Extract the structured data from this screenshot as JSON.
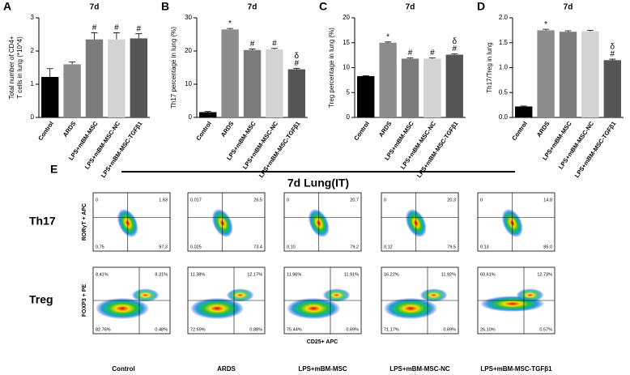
{
  "chart_data": [
    {
      "type": "bar",
      "panel_label": "A",
      "title": "7d",
      "ylabel": [
        "Total number of CD4+",
        "T cells in lung (*10^4)"
      ],
      "categories": [
        "Control",
        "ARDS",
        "LPS+mBM-MSC",
        "LPS+mBM-MSC-NC",
        "LPS+mBM-MSC-TGFβ1"
      ],
      "values": [
        1.22,
        1.6,
        2.35,
        2.35,
        2.38
      ],
      "errors": [
        0.25,
        0.07,
        0.2,
        0.2,
        0.14
      ],
      "colors": [
        "#000000",
        "#8c8c8c",
        "#7b7b7b",
        "#d3d3d3",
        "#555555"
      ],
      "annotations": [
        [],
        [],
        [
          "#"
        ],
        [
          "#"
        ],
        [
          "#"
        ]
      ],
      "ylim": [
        0,
        3
      ],
      "yticks": [
        0,
        1,
        2,
        3
      ]
    },
    {
      "type": "bar",
      "panel_label": "B",
      "title": "7d",
      "ylabel": [
        "Th17 percentage in lung (%)"
      ],
      "categories": [
        "Control",
        "ARDS",
        "LPS+mBM-MSC",
        "LPS+mBM-MSC-NC",
        "LPS+mBM-MSC-TGFβ1"
      ],
      "values": [
        1.6,
        26.5,
        20.3,
        20.5,
        14.5
      ],
      "errors": [
        0.2,
        0.3,
        0.3,
        0.3,
        0.3
      ],
      "colors": [
        "#000000",
        "#8c8c8c",
        "#7b7b7b",
        "#d3d3d3",
        "#555555"
      ],
      "annotations": [
        [],
        [
          "*"
        ],
        [
          "#"
        ],
        [
          "#"
        ],
        [
          "δ",
          "#"
        ]
      ],
      "ylim": [
        0,
        30
      ],
      "yticks": [
        0,
        10,
        20,
        30
      ]
    },
    {
      "type": "bar",
      "panel_label": "C",
      "title": "7d",
      "ylabel": [
        "Treg percentage in lung (%)"
      ],
      "categories": [
        "Control",
        "ARDS",
        "LPS+mBM-MSC",
        "LPS+mBM-MSC-NC",
        "LPS+mBM-MSC-TGFβ1"
      ],
      "values": [
        8.3,
        15.0,
        11.8,
        11.8,
        12.6
      ],
      "errors": [
        0.1,
        0.15,
        0.15,
        0.15,
        0.15
      ],
      "colors": [
        "#000000",
        "#8c8c8c",
        "#7b7b7b",
        "#d3d3d3",
        "#555555"
      ],
      "annotations": [
        [],
        [
          "*"
        ],
        [
          "#"
        ],
        [
          "#"
        ],
        [
          "δ",
          "#"
        ]
      ],
      "ylim": [
        0,
        20
      ],
      "yticks": [
        0,
        5,
        10,
        15,
        20
      ]
    },
    {
      "type": "bar",
      "panel_label": "D",
      "title": "7d",
      "ylabel": [
        "Th17/Treg in lung"
      ],
      "categories": [
        "Control",
        "ARDS",
        "LPS+mBM-MSC",
        "LPS+mBM-MSC-NC",
        "LPS+mBM-MSC-TGFβ1"
      ],
      "values": [
        0.22,
        1.75,
        1.72,
        1.73,
        1.15
      ],
      "errors": [
        0.01,
        0.02,
        0.02,
        0.02,
        0.02
      ],
      "colors": [
        "#000000",
        "#8c8c8c",
        "#7b7b7b",
        "#d3d3d3",
        "#555555"
      ],
      "annotations": [
        [],
        [
          "*"
        ],
        [],
        [],
        [
          "δ",
          "#"
        ]
      ],
      "ylim": [
        0,
        2
      ],
      "yticks": [
        {
          "value": 0,
          "label": "0.0"
        },
        {
          "value": 0.5,
          "label": "0.5"
        },
        {
          "value": 1,
          "label": "1.0"
        },
        {
          "value": 1.5,
          "label": "1.5"
        },
        {
          "value": 2,
          "label": "2.0"
        }
      ]
    }
  ],
  "flow_panel": {
    "panel_label": "E",
    "title": "7d Lung(IT)",
    "x_axis_label": "CD25+ APC",
    "columns": [
      "Control",
      "ARDS",
      "LPS+mBM-MSC",
      "LPS+mBM-MSC-NC",
      "LPS+mBM-MSC-TGFβ1"
    ],
    "rows": [
      {
        "label": "Th17",
        "y_axis_label": "RORγT + APC",
        "plots": [
          {
            "Q1": "0",
            "Q2": "1.63",
            "Q3": "97.3",
            "Q4": "0.75"
          },
          {
            "Q1": "0.017",
            "Q2": "26.5",
            "Q3": "73.4",
            "Q4": "0.025"
          },
          {
            "Q1": "0",
            "Q2": "20.7",
            "Q3": "79.2",
            "Q4": "0.10"
          },
          {
            "Q1": "0",
            "Q2": "20.3",
            "Q3": "79.5",
            "Q4": "0.12"
          },
          {
            "Q1": "0",
            "Q2": "14.8",
            "Q3": "85.0",
            "Q4": "0.13"
          }
        ]
      },
      {
        "label": "Treg",
        "y_axis_label": "FOXP3 + PE",
        "plots": [
          {
            "Q1": "8.41%",
            "Q2": "8.31%",
            "Q3": "82.76%",
            "Q4": "0.48%"
          },
          {
            "Q1": "11.38%",
            "Q2": "12.17%",
            "Q3": "72.69%",
            "Q4": "0.88%"
          },
          {
            "Q1": "11.96%",
            "Q2": "11.91%",
            "Q3": "75.44%",
            "Q4": "0.69%"
          },
          {
            "Q1": "16.22%",
            "Q2": "11.92%",
            "Q3": "71.17%",
            "Q4": "0.69%"
          },
          {
            "Q1": "60.61%",
            "Q2": "12.73%",
            "Q3": "26.10%",
            "Q4": "0.57%"
          }
        ]
      }
    ]
  }
}
